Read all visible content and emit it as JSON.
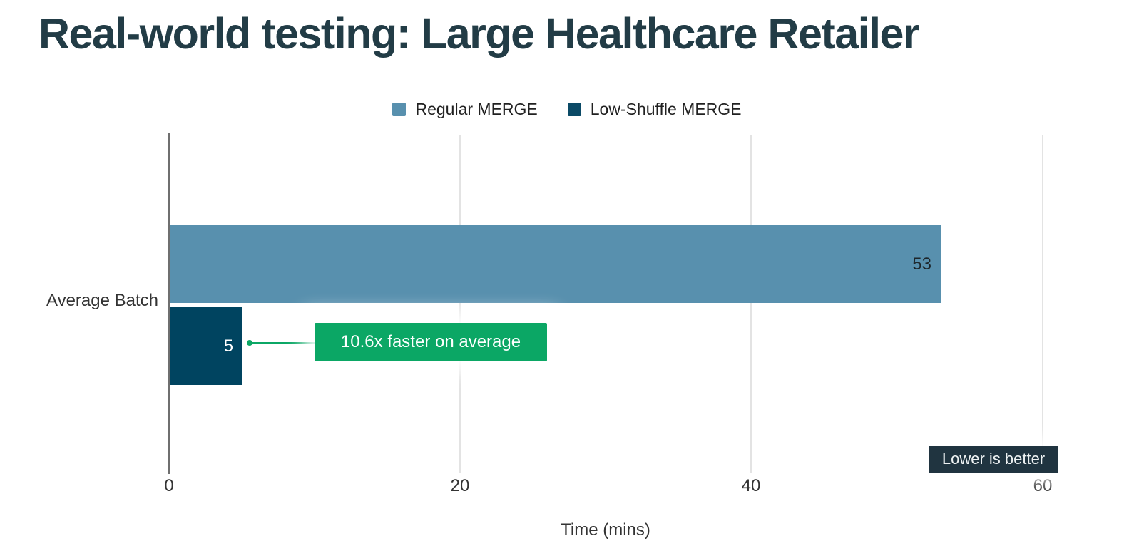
{
  "title": "Real-world testing: Large Healthcare Retailer",
  "colors": {
    "title_text": "#223c46",
    "regular_merge": "#5890ae",
    "low_shuffle_merge": "#004460",
    "annotation_green": "#0ba765",
    "badge_dark": "#203440",
    "axis_line": "#6f6f6f",
    "gridline": "#e3e3e3"
  },
  "legend": {
    "items": [
      {
        "label": "Regular MERGE",
        "color": "#5890ae"
      },
      {
        "label": "Low-Shuffle MERGE",
        "color": "#0b4a66"
      }
    ]
  },
  "chart_data": {
    "type": "bar",
    "orientation": "horizontal",
    "categories": [
      "Average Batch"
    ],
    "series": [
      {
        "name": "Regular MERGE",
        "values": [
          53
        ],
        "color": "#5890ae"
      },
      {
        "name": "Low-Shuffle MERGE",
        "values": [
          5
        ],
        "color": "#004460"
      }
    ],
    "title": "Real-world testing: Large Healthcare Retailer",
    "xlabel": "Time (mins)",
    "ylabel": "",
    "xlim": [
      0,
      60
    ],
    "x_ticks": [
      "0",
      "20",
      "40",
      "60"
    ],
    "grid": true,
    "legend_position": "top",
    "value_labels": "inside-end",
    "annotations": [
      {
        "text": "10.6x faster on average",
        "target": "Low-Shuffle MERGE bar",
        "color": "#0ba765"
      },
      {
        "text": "Lower is better",
        "position": "bottom-right",
        "color": "#203440"
      }
    ]
  }
}
